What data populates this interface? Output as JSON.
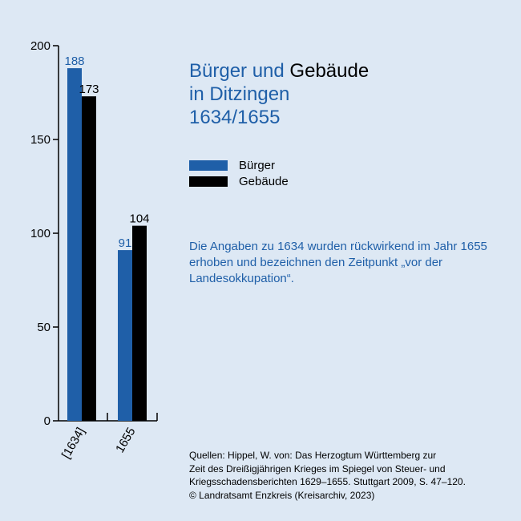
{
  "title": {
    "part1": "Bürger und",
    "part2": "Gebäude",
    "line2": "in Ditzingen",
    "line3": "1634/1655"
  },
  "legend": [
    {
      "label": "Bürger",
      "color": "#1f5fa8"
    },
    {
      "label": "Gebäude",
      "color": "#000000"
    }
  ],
  "note": "Die Angaben zu 1634 wurden rückwirkend im Jahr 1655 erhoben und bezeichnen den Zeitpunkt „vor der Landesokkupation“.",
  "sources": {
    "lines": [
      "Quellen: Hippel, W. von: Das Herzogtum Württemberg zur",
      "Zeit des Dreißigjährigen Krieges im Spiegel von Steuer- und",
      "Kriegsschadensberichten 1629–1655. Stuttgart 2009, S. 47–120.",
      "© Landratsamt Enzkreis (Kreisarchiv, 2023)"
    ]
  },
  "chart_data": {
    "type": "bar",
    "categories": [
      "[1634]",
      "1655"
    ],
    "series": [
      {
        "name": "Bürger",
        "values": [
          188,
          91
        ],
        "color": "#1f5fa8"
      },
      {
        "name": "Gebäude",
        "values": [
          173,
          104
        ],
        "color": "#000000"
      }
    ],
    "ylim": [
      0,
      200
    ],
    "yticks": [
      0,
      50,
      100,
      150,
      200
    ],
    "grid": false,
    "legend_position": "right"
  }
}
